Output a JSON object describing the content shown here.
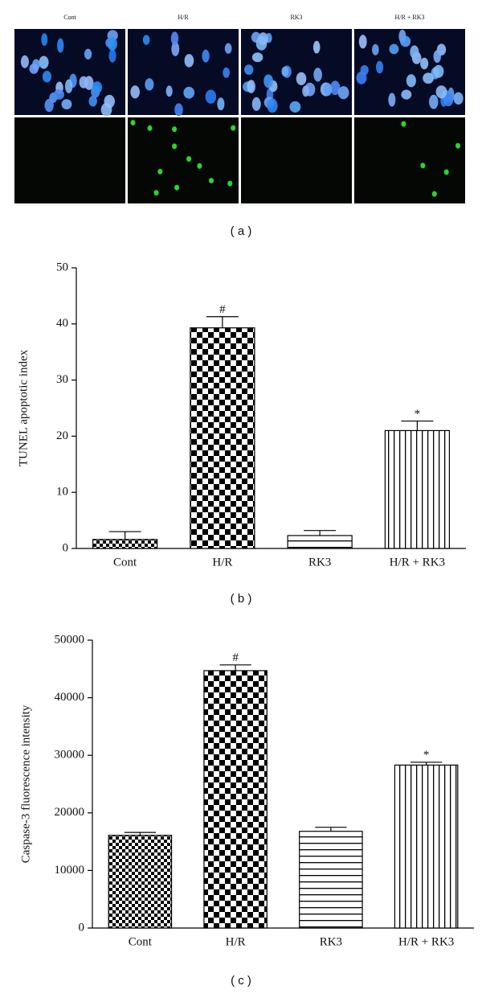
{
  "panel_a": {
    "column_labels": [
      "Cont",
      "H/R",
      "RK3",
      "H/R + RK3"
    ],
    "caption": "( a )"
  },
  "chart_data": [
    {
      "type": "bar",
      "ylabel": "TUNEL apoptotic index",
      "categories": [
        "Cont",
        "H/R",
        "RK3",
        "H/R + RK3"
      ],
      "values": [
        1.6,
        39.3,
        2.3,
        21
      ],
      "errors": [
        1.4,
        2,
        0.9,
        1.7
      ],
      "value_annotations": [
        null,
        "#",
        null,
        "*"
      ],
      "patterns": [
        "checker-small",
        "checker-large",
        "horizontal",
        "vertical"
      ],
      "color": "#000000",
      "ylim": [
        0,
        50
      ],
      "yticks": [
        0,
        10,
        20,
        30,
        40,
        50
      ],
      "caption": "( b )"
    },
    {
      "type": "bar",
      "ylabel": "Caspase-3 fluorescence intensity",
      "categories": [
        "Cont",
        "H/R",
        "RK3",
        "H/R + RK3"
      ],
      "values": [
        16100,
        44700,
        16800,
        28300
      ],
      "errors": [
        500,
        1000,
        700,
        500
      ],
      "value_annotations": [
        null,
        "#",
        null,
        "*"
      ],
      "patterns": [
        "checker-small",
        "checker-large",
        "horizontal",
        "vertical"
      ],
      "color": "#000000",
      "ylim": [
        0,
        50000
      ],
      "yticks": [
        0,
        10000,
        20000,
        30000,
        40000,
        50000
      ],
      "caption": "( c )"
    }
  ]
}
